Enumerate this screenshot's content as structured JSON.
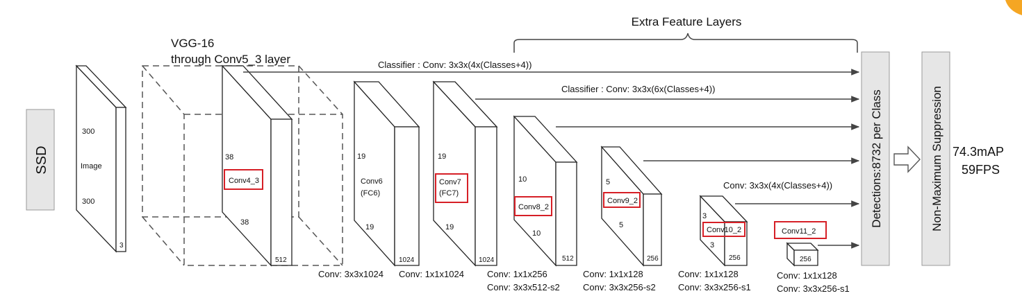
{
  "title": "Extra Feature Layers",
  "ssd_label": "SSD",
  "vgg_label": [
    "VGG-16",
    "through Conv5_3 layer"
  ],
  "image_block": {
    "size_top": "300",
    "name": "Image",
    "size_bottom": "300",
    "depth": "3"
  },
  "conv4_block": {
    "size_left": "38",
    "size_bottom": "38",
    "name": "Conv4_3",
    "depth": "512"
  },
  "fc6_block": {
    "size_left": "19",
    "name": "Conv6",
    "name2": "(FC6)",
    "size_bottom": "19",
    "depth": "1024"
  },
  "fc7_block": {
    "size_left": "19",
    "name": "Conv7",
    "name2": "(FC7)",
    "size_bottom": "19",
    "depth": "1024"
  },
  "conv8_block": {
    "size_left": "10",
    "name": "Conv8_2",
    "size_bottom": "10",
    "depth": "512"
  },
  "conv9_block": {
    "size_left": "5",
    "name": "Conv9_2",
    "size_bottom": "5",
    "depth": "256"
  },
  "conv10_block": {
    "size_left": "3",
    "name": "Conv10_2",
    "size_bottom": "3",
    "depth": "256"
  },
  "conv11_block": {
    "name": "Conv11_2",
    "depth": "256"
  },
  "classifiers": {
    "c1": "Classifier : Conv: 3x3x(4x(Classes+4))",
    "c2": "Classifier : Conv: 3x3x(6x(Classes+4))",
    "c3": "Conv: 3x3x(4x(Classes+4))"
  },
  "bottom_labels": {
    "fc6": "Conv: 3x3x1024",
    "fc7": "Conv: 1x1x1024",
    "conv8": [
      "Conv: 1x1x256",
      "Conv:  3x3x512-s2"
    ],
    "conv9": [
      "Conv: 1x1x128",
      "Conv: 3x3x256-s2"
    ],
    "conv10": [
      "Conv: 1x1x128",
      "Conv: 3x3x256-s1"
    ],
    "conv11": [
      "Conv: 1x1x128",
      "Conv: 3x3x256-s1"
    ]
  },
  "detections_label": "Detections:8732  per Class",
  "nms_label": "Non-Maximum Suppression",
  "results": {
    "map": "74.3mAP",
    "fps": "59FPS"
  },
  "colors": {
    "highlight": "#d61f26",
    "panel": "#e6e6e6",
    "corner_accent": "#f5a623"
  }
}
